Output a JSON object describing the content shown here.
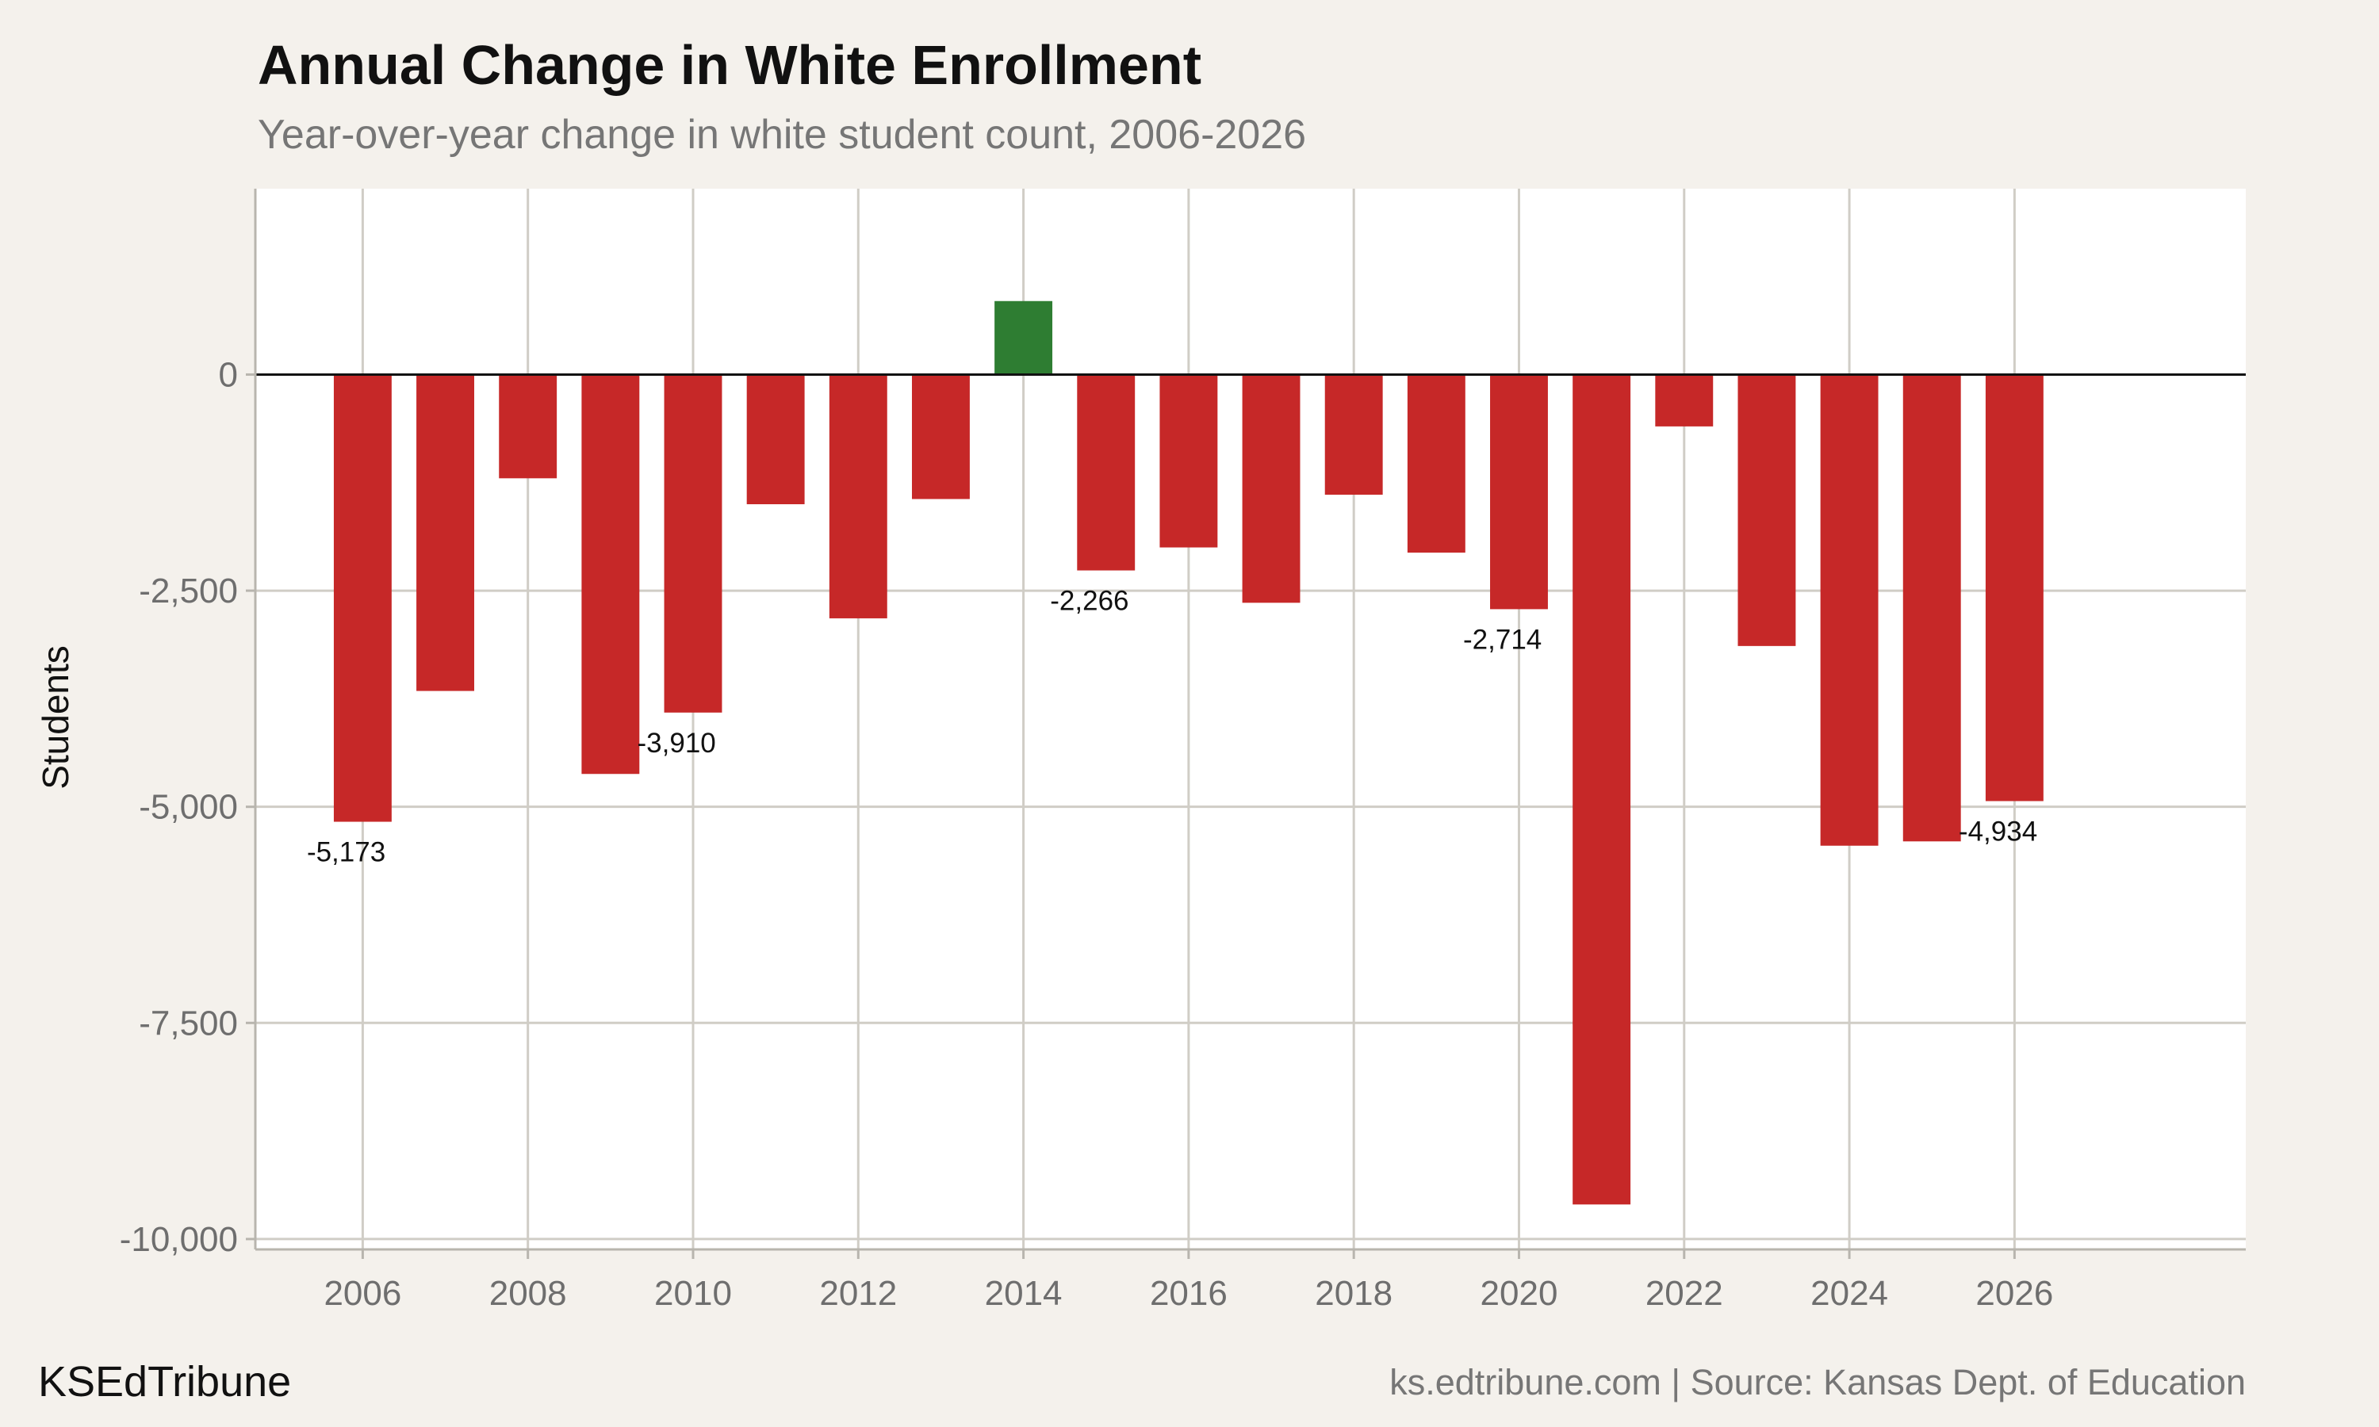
{
  "title": "Annual Change in White Enrollment",
  "subtitle": "Year-over-year change in white student count, 2006-2026",
  "footer": {
    "brand": "KSEdTribune",
    "source": "ks.edtribune.com | Source: Kansas Dept. of Education"
  },
  "colors": {
    "negative": "#c62828",
    "positive": "#2e7d32",
    "background": "#f4f1ec",
    "panel": "#ffffff",
    "grid": "#d0cdc6",
    "zero_line": "#111111"
  },
  "chart_data": {
    "type": "bar",
    "title": "Annual Change in White Enrollment",
    "subtitle": "Year-over-year change in white student count, 2006-2026",
    "xlabel": "",
    "ylabel": "Students",
    "categories": [
      2006,
      2007,
      2008,
      2009,
      2010,
      2011,
      2012,
      2013,
      2014,
      2015,
      2016,
      2017,
      2018,
      2019,
      2020,
      2021,
      2022,
      2023,
      2024,
      2025,
      2026
    ],
    "values": [
      -5173,
      -3660,
      -1200,
      -4620,
      -3910,
      -1500,
      -2820,
      -1440,
      850,
      -2266,
      -2000,
      -2640,
      -1390,
      -2060,
      -2714,
      -9600,
      -600,
      -3140,
      -5450,
      -5400,
      -4934
    ],
    "labeled_points": [
      {
        "x": 2006,
        "label": "-5,173"
      },
      {
        "x": 2010,
        "label": "-3,910"
      },
      {
        "x": 2015,
        "label": "-2,266"
      },
      {
        "x": 2020,
        "label": "-2,714"
      },
      {
        "x": 2026,
        "label": "-4,934"
      }
    ],
    "xlim": [
      2004.7,
      2028.8
    ],
    "ylim": [
      -10120,
      2150
    ],
    "x_ticks": [
      2006,
      2008,
      2010,
      2012,
      2014,
      2016,
      2018,
      2020,
      2022,
      2024,
      2026
    ],
    "x_tick_labels": [
      "2006",
      "2008",
      "2010",
      "2012",
      "2014",
      "2016",
      "2018",
      "2020",
      "2022",
      "2024",
      "2026"
    ],
    "y_ticks": [
      0,
      -2500,
      -5000,
      -7500,
      -10000
    ],
    "y_tick_labels": [
      "0",
      "-2,500",
      "-5,000",
      "-7,500",
      "-10,000"
    ],
    "grid": true,
    "legend": false
  }
}
